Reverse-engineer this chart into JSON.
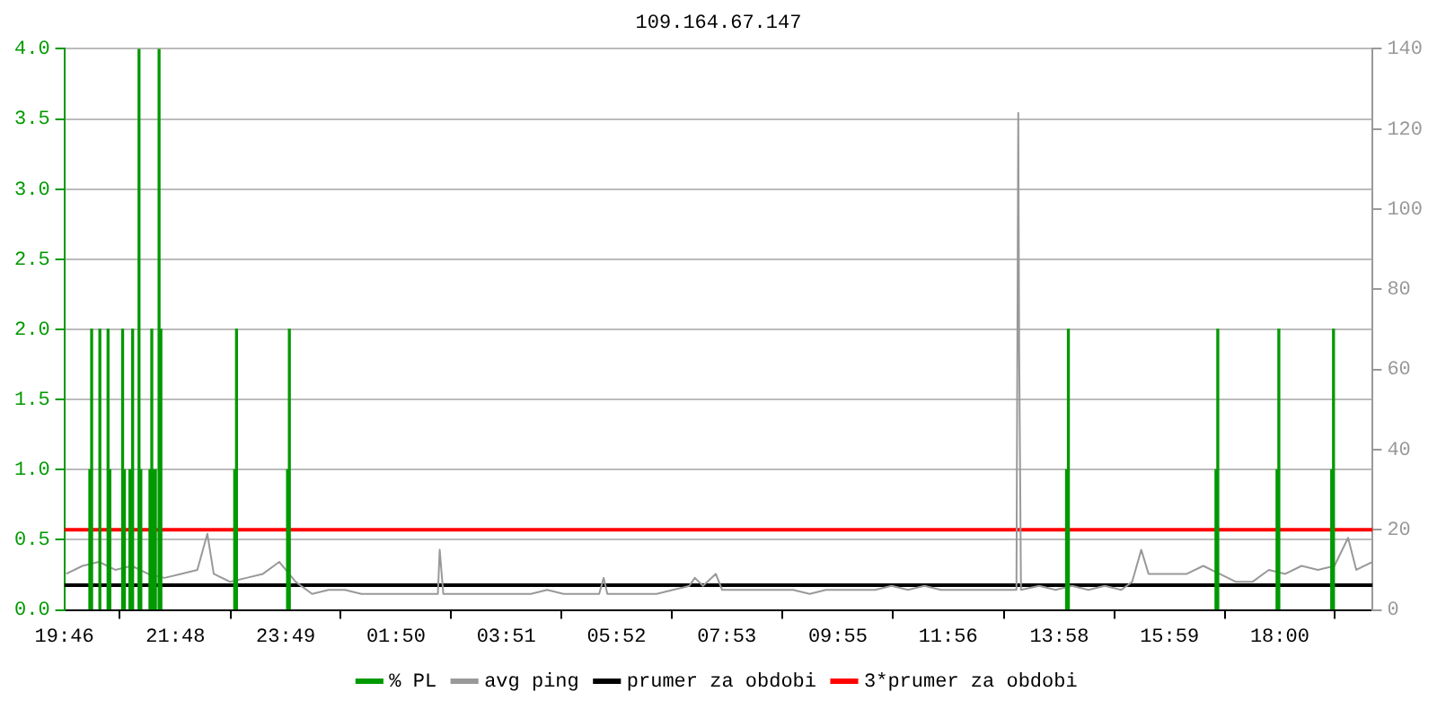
{
  "chart_data": {
    "type": "line",
    "title": "109.164.67.147",
    "xlim": [
      "--01-01T19:46",
      "--01-02T19:42"
    ],
    "xticks": [
      {
        "value": "--01-01T19:46",
        "label": "19:46"
      },
      {
        "value": "--01-01T21:48",
        "label": "21:48"
      },
      {
        "value": "--01-01T23:49",
        "label": "23:49"
      },
      {
        "value": "--01-02T01:50",
        "label": "01:50"
      },
      {
        "value": "--01-02T03:51",
        "label": "03:51"
      },
      {
        "value": "--01-02T05:52",
        "label": "05:52"
      },
      {
        "value": "--01-02T07:53",
        "label": "07:53"
      },
      {
        "value": "--01-02T09:55",
        "label": "09:55"
      },
      {
        "value": "--01-02T11:56",
        "label": "11:56"
      },
      {
        "value": "--01-02T13:58",
        "label": "13:58"
      },
      {
        "value": "--01-02T15:59",
        "label": "15:59"
      },
      {
        "value": "--01-02T18:00",
        "label": "18:00"
      }
    ],
    "ylim": [
      0,
      4
    ],
    "yticks": [
      {
        "value": 0,
        "label": "0.0"
      },
      {
        "value": 0.5,
        "label": "0.5"
      },
      {
        "value": 1,
        "label": "1.0"
      },
      {
        "value": 1.5,
        "label": "1.5"
      },
      {
        "value": 2,
        "label": "2.0"
      },
      {
        "value": 2.5,
        "label": "2.5"
      },
      {
        "value": 3,
        "label": "3.0"
      },
      {
        "value": 3.5,
        "label": "3.5"
      },
      {
        "value": 4,
        "label": "4.0"
      }
    ],
    "y2lim": [
      0,
      140
    ],
    "y2ticks": [
      0,
      20,
      40,
      60,
      80,
      100,
      120,
      140
    ],
    "grid": "y",
    "legend": "bottom",
    "series": [
      {
        "name": "% PL",
        "type": "bar",
        "axis": "y",
        "color": "#009900",
        "x": [
          "--01-01T20:14",
          "--01-01T20:16",
          "--01-01T20:25",
          "--01-01T20:34",
          "--01-01T20:36",
          "--01-01T20:50",
          "--01-01T20:52",
          "--01-01T20:58",
          "--01-01T21:01",
          "--01-01T21:08",
          "--01-01T21:10",
          "--01-01T21:20",
          "--01-01T21:22",
          "--01-01T21:24",
          "--01-01T21:26",
          "--01-01T21:30",
          "--01-01T21:32",
          "--01-01T22:53",
          "--01-01T22:55",
          "--01-01T23:51",
          "--01-01T23:53",
          "--01-02T14:06",
          "--01-02T14:08",
          "--01-02T16:50",
          "--01-02T16:52",
          "--01-02T17:57",
          "--01-02T17:59",
          "--01-02T18:57",
          "--01-02T18:59"
        ],
        "values": [
          1,
          2,
          2,
          2,
          1,
          2,
          1,
          1,
          2,
          4,
          1,
          1,
          2,
          1,
          1,
          4,
          2,
          1,
          2,
          1,
          2,
          1,
          2,
          1,
          2,
          1,
          2,
          1,
          2
        ]
      },
      {
        "name": "avg ping",
        "axis": "y2",
        "color": "#999999",
        "x": [
          "--01-01T19:48",
          "--01-01T20:06",
          "--01-01T20:24",
          "--01-01T20:42",
          "--01-01T21:00",
          "--01-01T21:18",
          "--01-01T21:36",
          "--01-01T21:54",
          "--01-01T22:12",
          "--01-01T22:23",
          "--01-01T22:30",
          "--01-01T22:48",
          "--01-01T23:06",
          "--01-01T23:24",
          "--01-01T23:42",
          "--01-02T00:00",
          "--01-02T00:18",
          "--01-02T00:36",
          "--01-02T00:54",
          "--01-02T01:12",
          "--01-02T01:30",
          "--01-02T01:48",
          "--01-02T02:06",
          "--01-02T02:24",
          "--01-02T02:36",
          "--01-02T02:38",
          "--01-02T02:42",
          "--01-02T03:06",
          "--01-02T03:24",
          "--01-02T03:42",
          "--01-02T04:00",
          "--01-02T04:18",
          "--01-02T04:36",
          "--01-02T04:54",
          "--01-02T05:12",
          "--01-02T05:33",
          "--01-02T05:38",
          "--01-02T05:42",
          "--01-02T06:00",
          "--01-02T06:18",
          "--01-02T06:36",
          "--01-02T06:54",
          "--01-02T07:12",
          "--01-02T07:18",
          "--01-02T07:27",
          "--01-02T07:41",
          "--01-02T07:48",
          "--01-02T08:12",
          "--01-02T08:30",
          "--01-02T08:48",
          "--01-02T09:06",
          "--01-02T09:24",
          "--01-02T09:42",
          "--01-02T10:00",
          "--01-02T10:18",
          "--01-02T10:36",
          "--01-02T10:54",
          "--01-02T11:12",
          "--01-02T11:30",
          "--01-02T11:48",
          "--01-02T12:06",
          "--01-02T12:24",
          "--01-02T12:42",
          "--01-02T13:00",
          "--01-02T13:11",
          "--01-02T13:13",
          "--01-02T13:14",
          "--01-02T13:16",
          "--01-02T13:36",
          "--01-02T13:54",
          "--01-02T14:12",
          "--01-02T14:30",
          "--01-02T14:48",
          "--01-02T15:06",
          "--01-02T15:18",
          "--01-02T15:28",
          "--01-02T15:36",
          "--01-02T16:00",
          "--01-02T16:18",
          "--01-02T16:36",
          "--01-02T16:54",
          "--01-02T17:12",
          "--01-02T17:30",
          "--01-02T17:48",
          "--01-02T18:06",
          "--01-02T18:24",
          "--01-02T18:42",
          "--01-02T19:00",
          "--01-02T19:15",
          "--01-02T19:24",
          "--01-02T19:42"
        ],
        "values": [
          9,
          11,
          12,
          10,
          11,
          9,
          8,
          9,
          10,
          19,
          9,
          7,
          8,
          9,
          12,
          7,
          4,
          5,
          5,
          4,
          4,
          4,
          4,
          4,
          4,
          15,
          4,
          4,
          4,
          4,
          4,
          4,
          5,
          4,
          4,
          4,
          8,
          4,
          4,
          4,
          4,
          5,
          6,
          8,
          6,
          9,
          5,
          5,
          5,
          5,
          5,
          4,
          5,
          5,
          5,
          5,
          6,
          5,
          6,
          5,
          5,
          5,
          5,
          5,
          5,
          124,
          65,
          5,
          6,
          5,
          6,
          5,
          6,
          5,
          7,
          15,
          9,
          9,
          9,
          11,
          9,
          7,
          7,
          10,
          9,
          11,
          10,
          11,
          18,
          10,
          12
        ]
      },
      {
        "name": "prumer za obdobi",
        "axis": "y2",
        "color": "#000000",
        "x": [
          "--01-01T19:46",
          "--01-02T19:42"
        ],
        "values": [
          6.2,
          6.2
        ]
      },
      {
        "name": "3*prumer za obdobi",
        "axis": "y2",
        "color": "#ff0000",
        "x": [
          "--01-01T19:46",
          "--01-02T19:42"
        ],
        "values": [
          20,
          20
        ]
      }
    ]
  }
}
